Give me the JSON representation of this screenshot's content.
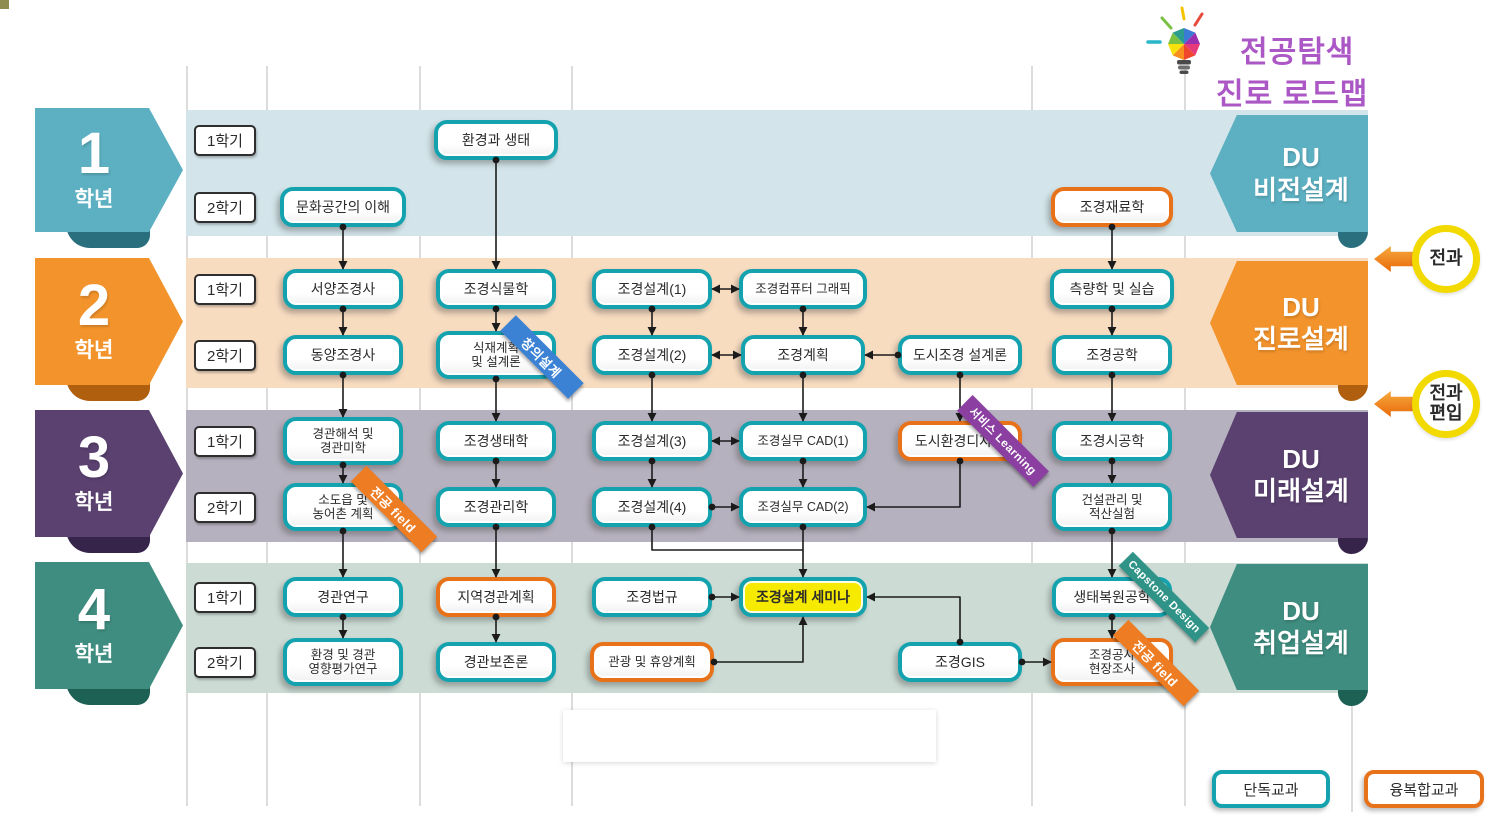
{
  "title": {
    "line1": "전공탐색",
    "line2": "진로 로드맵"
  },
  "years": [
    {
      "num": "1",
      "label": "학년",
      "du": [
        "DU",
        "비전설계"
      ]
    },
    {
      "num": "2",
      "label": "학년",
      "du": [
        "DU",
        "진로설계"
      ]
    },
    {
      "num": "3",
      "label": "학년",
      "du": [
        "DU",
        "미래설계"
      ]
    },
    {
      "num": "4",
      "label": "학년",
      "du": [
        "DU",
        "취업설계"
      ]
    }
  ],
  "semester_labels": [
    "1학기",
    "2학기"
  ],
  "transfer_labels": [
    "전과",
    "전과\n편입"
  ],
  "legend": [
    {
      "label": "단독교과",
      "type": "single"
    },
    {
      "label": "융복합교과",
      "type": "fusion"
    }
  ],
  "ribbons": [
    {
      "label": "창의설계",
      "color_key": "ribbon_blue",
      "attached_to": "planting"
    },
    {
      "label": "전공 field",
      "color_key": "ribbon_orange",
      "attached_to": "small_town"
    },
    {
      "label": "서비스 Learning",
      "color_key": "ribbon_purple",
      "attached_to": "urban_design"
    },
    {
      "label": "Capstone Design",
      "color_key": "ribbon_teal",
      "attached_to": "restoration"
    },
    {
      "label": "전공 field",
      "color_key": "ribbon_orange",
      "attached_to": "field_survey"
    }
  ],
  "courses": [
    {
      "id": "eco",
      "label": "환경과 생태",
      "type": "single",
      "year": 1,
      "semester": "1학기"
    },
    {
      "id": "culture",
      "label": "문화공간의 이해",
      "type": "single",
      "year": 1,
      "semester": "2학기"
    },
    {
      "id": "materials",
      "label": "조경재료학",
      "type": "fusion",
      "year": 1,
      "semester": "2학기"
    },
    {
      "id": "west_hist",
      "label": "서양조경사",
      "type": "single",
      "year": 2,
      "semester": "1학기"
    },
    {
      "id": "plants",
      "label": "조경식물학",
      "type": "single",
      "year": 2,
      "semester": "1학기"
    },
    {
      "id": "design1",
      "label": "조경설계(1)",
      "type": "single",
      "year": 2,
      "semester": "1학기"
    },
    {
      "id": "graphics",
      "label": "조경컴퓨터 그래픽",
      "type": "single",
      "year": 2,
      "semester": "1학기"
    },
    {
      "id": "survey",
      "label": "측량학 및 실습",
      "type": "single",
      "year": 2,
      "semester": "1학기"
    },
    {
      "id": "east_hist",
      "label": "동양조경사",
      "type": "single",
      "year": 2,
      "semester": "2학기"
    },
    {
      "id": "planting",
      "label": "식재계획\n및 설계론",
      "type": "single",
      "year": 2,
      "semester": "2학기"
    },
    {
      "id": "design2",
      "label": "조경설계(2)",
      "type": "single",
      "year": 2,
      "semester": "2학기"
    },
    {
      "id": "plan",
      "label": "조경계획",
      "type": "single",
      "year": 2,
      "semester": "2학기"
    },
    {
      "id": "urban_theory",
      "label": "도시조경 설계론",
      "type": "single",
      "year": 2,
      "semester": "2학기"
    },
    {
      "id": "engineering",
      "label": "조경공학",
      "type": "single",
      "year": 2,
      "semester": "2학기"
    },
    {
      "id": "analysis",
      "label": "경관해석 및\n경관미학",
      "type": "single",
      "year": 3,
      "semester": "1학기"
    },
    {
      "id": "ecology",
      "label": "조경생태학",
      "type": "single",
      "year": 3,
      "semester": "1학기"
    },
    {
      "id": "design3",
      "label": "조경설계(3)",
      "type": "single",
      "year": 3,
      "semester": "1학기"
    },
    {
      "id": "cad1",
      "label": "조경실무 CAD(1)",
      "type": "single",
      "year": 3,
      "semester": "1학기"
    },
    {
      "id": "urban_design",
      "label": "도시환경디자인",
      "type": "fusion",
      "year": 3,
      "semester": "1학기"
    },
    {
      "id": "construction",
      "label": "조경시공학",
      "type": "single",
      "year": 3,
      "semester": "1학기"
    },
    {
      "id": "small_town",
      "label": "소도읍 및\n농어촌 계획",
      "type": "single",
      "year": 3,
      "semester": "2학기"
    },
    {
      "id": "management",
      "label": "조경관리학",
      "type": "single",
      "year": 3,
      "semester": "2학기"
    },
    {
      "id": "design4",
      "label": "조경설계(4)",
      "type": "single",
      "year": 3,
      "semester": "2학기"
    },
    {
      "id": "cad2",
      "label": "조경실무 CAD(2)",
      "type": "single",
      "year": 3,
      "semester": "2학기"
    },
    {
      "id": "cost",
      "label": "건설관리 및\n적산실험",
      "type": "single",
      "year": 3,
      "semester": "2학기"
    },
    {
      "id": "research",
      "label": "경관연구",
      "type": "single",
      "year": 4,
      "semester": "1학기"
    },
    {
      "id": "regional",
      "label": "지역경관계획",
      "type": "fusion",
      "year": 4,
      "semester": "1학기"
    },
    {
      "id": "law",
      "label": "조경법규",
      "type": "single",
      "year": 4,
      "semester": "1학기"
    },
    {
      "id": "seminar",
      "label": "조경설계 세미나",
      "type": "highlight",
      "year": 4,
      "semester": "1학기"
    },
    {
      "id": "restoration",
      "label": "생태복원공학",
      "type": "single",
      "year": 4,
      "semester": "1학기"
    },
    {
      "id": "impact",
      "label": "환경 및 경관\n영향평가연구",
      "type": "single",
      "year": 4,
      "semester": "2학기"
    },
    {
      "id": "conservation",
      "label": "경관보존론",
      "type": "single",
      "year": 4,
      "semester": "2학기"
    },
    {
      "id": "tourism",
      "label": "관광 및 휴양계획",
      "type": "fusion",
      "year": 4,
      "semester": "2학기"
    },
    {
      "id": "gis",
      "label": "조경GIS",
      "type": "single",
      "year": 4,
      "semester": "2학기"
    },
    {
      "id": "field_survey",
      "label": "조경공사\n현장조사",
      "type": "fusion",
      "year": 4,
      "semester": "2학기"
    }
  ],
  "edges": [
    {
      "from": "culture",
      "to": "west_hist",
      "style": "v"
    },
    {
      "from": "west_hist",
      "to": "east_hist",
      "style": "v"
    },
    {
      "from": "east_hist",
      "to": "analysis",
      "style": "v"
    },
    {
      "from": "analysis",
      "to": "small_town",
      "style": "v"
    },
    {
      "from": "small_town",
      "to": "research",
      "style": "v"
    },
    {
      "from": "research",
      "to": "impact",
      "style": "v"
    },
    {
      "from": "eco",
      "to": "plants",
      "style": "v"
    },
    {
      "from": "plants",
      "to": "planting",
      "style": "v"
    },
    {
      "from": "planting",
      "to": "ecology",
      "style": "v"
    },
    {
      "from": "ecology",
      "to": "management",
      "style": "v"
    },
    {
      "from": "management",
      "to": "regional",
      "style": "v"
    },
    {
      "from": "regional",
      "to": "conservation",
      "style": "v"
    },
    {
      "from": "design1",
      "to": "design2",
      "style": "v"
    },
    {
      "from": "design2",
      "to": "design3",
      "style": "v"
    },
    {
      "from": "design3",
      "to": "design4",
      "style": "v"
    },
    {
      "from": "graphics",
      "to": "plan",
      "style": "v"
    },
    {
      "from": "plan",
      "to": "cad1",
      "style": "v"
    },
    {
      "from": "cad1",
      "to": "cad2",
      "style": "v"
    },
    {
      "from": "cad2",
      "to": "seminar",
      "style": "v"
    },
    {
      "from": "urban_theory",
      "to": "urban_design",
      "style": "v"
    },
    {
      "from": "materials",
      "to": "survey",
      "style": "v"
    },
    {
      "from": "survey",
      "to": "engineering",
      "style": "v"
    },
    {
      "from": "engineering",
      "to": "construction",
      "style": "v"
    },
    {
      "from": "construction",
      "to": "cost",
      "style": "v"
    },
    {
      "from": "cost",
      "to": "restoration",
      "style": "v"
    },
    {
      "from": "restoration",
      "to": "field_survey",
      "style": "v"
    },
    {
      "from": "design1",
      "to": "graphics",
      "style": "h2"
    },
    {
      "from": "design2",
      "to": "plan",
      "style": "h2"
    },
    {
      "from": "design3",
      "to": "cad1",
      "style": "h2"
    },
    {
      "from": "urban_theory",
      "to": "plan",
      "style": "hl"
    },
    {
      "from": "design4",
      "to": "cad2",
      "style": "hr"
    },
    {
      "from": "law",
      "to": "seminar",
      "style": "hr"
    },
    {
      "from": "gis",
      "to": "field_survey",
      "style": "hr"
    },
    {
      "from": "urban_design",
      "to": "cad2",
      "style": "elbow_down_left"
    },
    {
      "from": "design4",
      "to": "cad2",
      "style": "merge"
    },
    {
      "from": "tourism",
      "to": "seminar",
      "style": "elbow_right_up"
    },
    {
      "from": "gis",
      "to": "seminar",
      "style": "elbow_up_left"
    }
  ],
  "colors": {
    "year1": "#5cb0c2",
    "band1": "#d3e5ea",
    "fold1": "#2a6f7e",
    "year2": "#f2932c",
    "band2": "#f8dcc0",
    "fold2": "#b05f0e",
    "year3": "#5a4170",
    "band3": "#b6b1be",
    "fold3": "#36244a",
    "year4": "#3f8d80",
    "band4": "#ccdcd5",
    "fold4": "#1d6154",
    "single_border": "#14a3ae",
    "fusion_border": "#e8721a",
    "highlight_bg": "#f6ea00",
    "title": "#ab57c5",
    "circle_border": "#f2d900",
    "block_arrow": "#ee8012",
    "ribbon_blue": "#3b82d4",
    "ribbon_orange": "#ee7c22",
    "ribbon_purple": "#8b3fa0",
    "ribbon_teal": "#2f9487",
    "line": "#1b1b1b"
  }
}
